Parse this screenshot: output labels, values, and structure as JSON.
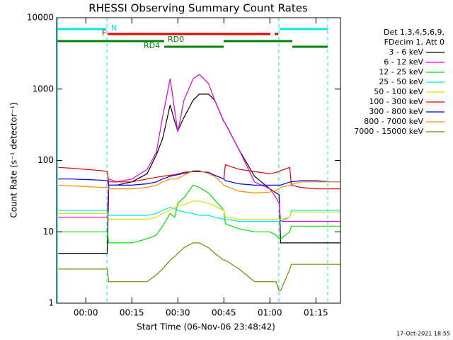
{
  "chart_data": {
    "type": "line",
    "title": "RHESSI Observing Summary Count Rates",
    "xlabel": "Start Time (06-Nov-06 23:48:42)",
    "ylabel": "Count Rate (s⁻¹ detector⁻¹)",
    "log_y": true,
    "xlim": [
      -9.5,
      83
    ],
    "xticks": [
      {
        "value": 0,
        "label": "00:00"
      },
      {
        "value": 15,
        "label": "00:15"
      },
      {
        "value": 30,
        "label": "00:30"
      },
      {
        "value": 45,
        "label": "00:45"
      },
      {
        "value": 60,
        "label": "01:00"
      },
      {
        "value": 75,
        "label": "01:15"
      }
    ],
    "ylim": [
      1,
      10000
    ],
    "yticks": [
      1,
      10,
      100,
      1000,
      10000
    ],
    "legend_title": [
      "Det 1,3,4,5,6,9,",
      "FDecim 1, Att 0"
    ],
    "annotations": [
      "N",
      "F",
      "RD0",
      "RD4"
    ],
    "footer": "17-Oct-2021 18:55",
    "x": [
      -9,
      -5,
      0,
      5,
      7,
      7.5,
      10,
      15,
      20,
      23,
      25,
      27.5,
      29,
      30,
      32,
      35,
      37,
      40,
      42,
      45,
      45.5,
      50,
      55,
      60,
      62,
      63,
      63.5,
      66.5,
      67,
      70,
      75,
      80,
      83
    ],
    "series": [
      {
        "name": "3 - 6 keV",
        "color": "#000000",
        "values": [
          5,
          5,
          5,
          5,
          5,
          45,
          45,
          50,
          65,
          120,
          200,
          600,
          350,
          260,
          400,
          700,
          850,
          850,
          700,
          350,
          330,
          140,
          60,
          40,
          35,
          33,
          7,
          7,
          7,
          7,
          7,
          7,
          7
        ]
      },
      {
        "name": "6 - 12 keV",
        "color": "#e000e0",
        "values": [
          16,
          16,
          16,
          16,
          16,
          55,
          50,
          55,
          75,
          130,
          400,
          1400,
          500,
          250,
          700,
          1400,
          1600,
          1200,
          700,
          350,
          330,
          140,
          50,
          40,
          30,
          25,
          14,
          14,
          14,
          14,
          14,
          14,
          14
        ]
      },
      {
        "name": "12 - 25 keV",
        "color": "#00e000",
        "values": [
          10,
          10,
          10,
          10,
          10,
          7,
          7,
          7,
          8,
          9,
          12,
          18,
          16,
          25,
          30,
          45,
          42,
          35,
          28,
          20,
          13,
          11,
          10,
          10,
          9,
          8,
          8,
          10,
          12,
          12,
          12,
          12,
          12
        ]
      },
      {
        "name": "25 - 50 keV",
        "color": "#00e8e8",
        "values": [
          20,
          20,
          20,
          20,
          20,
          17,
          17,
          17,
          17,
          18,
          20,
          22,
          21,
          20,
          19,
          18,
          17,
          17,
          16,
          15,
          15,
          14,
          14,
          14,
          14,
          14,
          14,
          16,
          20,
          20,
          20,
          20,
          20
        ]
      },
      {
        "name": "50 - 100 keV",
        "color": "#e0e000",
        "values": [
          18,
          18,
          18,
          18,
          18,
          15,
          15,
          15,
          15,
          16,
          18,
          20,
          22,
          23,
          24,
          27,
          27,
          25,
          23,
          20,
          16,
          15,
          15,
          15,
          15,
          15,
          15,
          16,
          19,
          19,
          19,
          19,
          19
        ]
      },
      {
        "name": "100 - 300 keV",
        "color": "#e00000",
        "values": [
          80,
          78,
          75,
          72,
          70,
          50,
          50,
          50,
          55,
          58,
          60,
          62,
          63,
          65,
          68,
          70,
          70,
          68,
          62,
          55,
          87,
          75,
          70,
          65,
          68,
          70,
          72,
          80,
          45,
          42,
          40,
          40,
          40
        ]
      },
      {
        "name": "300 - 800 keV",
        "color": "#0000e0",
        "values": [
          55,
          55,
          54,
          53,
          52,
          45,
          45,
          45,
          47,
          50,
          55,
          60,
          62,
          63,
          66,
          70,
          70,
          68,
          62,
          55,
          52,
          47,
          45,
          45,
          45,
          45,
          45,
          50,
          50,
          52,
          52,
          50,
          50
        ]
      },
      {
        "name": "800 - 7000 keV",
        "color": "#ff8c00",
        "values": [
          45,
          44,
          43,
          42,
          42,
          40,
          40,
          40,
          42,
          45,
          50,
          55,
          55,
          56,
          62,
          72,
          72,
          65,
          60,
          45,
          44,
          37,
          35,
          36,
          38,
          40,
          42,
          45,
          46,
          50,
          50,
          50,
          50
        ]
      },
      {
        "name": "7000 - 15000 keV",
        "color": "#808000",
        "values": [
          3,
          3,
          3,
          3,
          3,
          2,
          2,
          2,
          2,
          2.5,
          3,
          4,
          4.5,
          5,
          6,
          7,
          7,
          6,
          5,
          4,
          4,
          3,
          2,
          2,
          2,
          1.5,
          1.5,
          3,
          3.5,
          3.5,
          3.5,
          3.5,
          3.5
        ]
      }
    ]
  }
}
